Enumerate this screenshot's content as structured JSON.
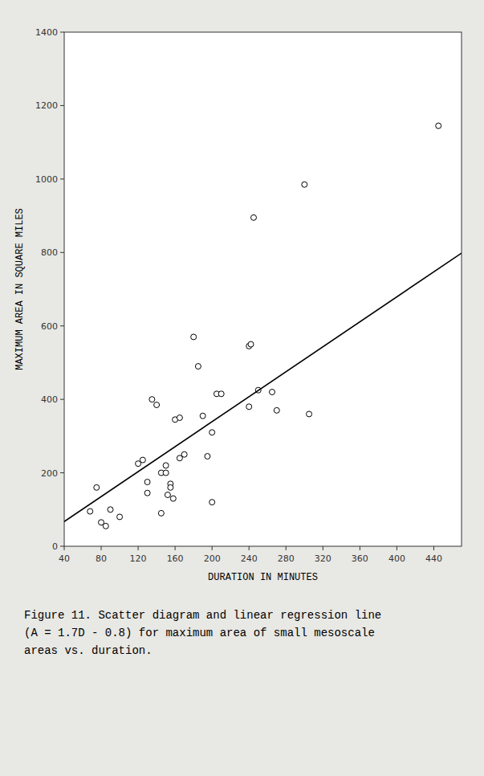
{
  "chart_data": {
    "type": "scatter",
    "xlabel": "DURATION IN MINUTES",
    "ylabel": "MAXIMUM AREA IN SQUARE MILES",
    "annotations": [
      "Figure 11.  Scatter diagram and linear regression line",
      "(A = 1.7D - 0.8) for maximum area of small mesoscale",
      "areas vs. duration."
    ],
    "xlim": [
      40,
      470
    ],
    "ylim": [
      0,
      1400
    ],
    "xticks": [
      40,
      80,
      120,
      160,
      200,
      240,
      280,
      320,
      360,
      400,
      440
    ],
    "yticks": [
      0,
      200,
      400,
      600,
      800,
      1000,
      1200,
      1400
    ],
    "grid": false,
    "series": [
      {
        "type": "scatter",
        "color": "black",
        "marker": "circle",
        "x": [
          68,
          75,
          80,
          85,
          90,
          100,
          120,
          125,
          130,
          130,
          135,
          140,
          145,
          145,
          150,
          150,
          152,
          155,
          155,
          158,
          160,
          165,
          165,
          170,
          180,
          185,
          190,
          195,
          200,
          200,
          205,
          210,
          240,
          240,
          242,
          245,
          250,
          265,
          270,
          300,
          305,
          445
        ],
        "values": [
          95,
          160,
          65,
          55,
          100,
          80,
          225,
          235,
          175,
          145,
          400,
          385,
          200,
          90,
          220,
          200,
          140,
          170,
          160,
          130,
          345,
          350,
          240,
          250,
          570,
          490,
          355,
          245,
          310,
          120,
          415,
          415,
          380,
          545,
          550,
          895,
          425,
          420,
          370,
          985,
          360,
          1145
        ]
      },
      {
        "type": "line",
        "color": "black",
        "line_style": "solid",
        "x": [
          40,
          470
        ],
        "values": [
          67.2,
          798.2
        ]
      }
    ]
  }
}
